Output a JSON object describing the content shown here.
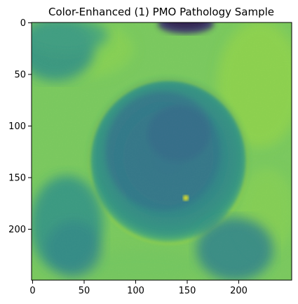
{
  "title": "Color-Enhanced (1) PMO Pathology Sample",
  "image": {
    "colormap": "viridis",
    "description_semantics": "grayscale microscopy image rendered with color map",
    "x_ticks": [
      "0",
      "50",
      "100",
      "150",
      "200"
    ],
    "y_ticks": [
      "0",
      "50",
      "100",
      "150",
      "200"
    ],
    "x_range": [
      0,
      250
    ],
    "y_range": [
      0,
      250
    ]
  }
}
